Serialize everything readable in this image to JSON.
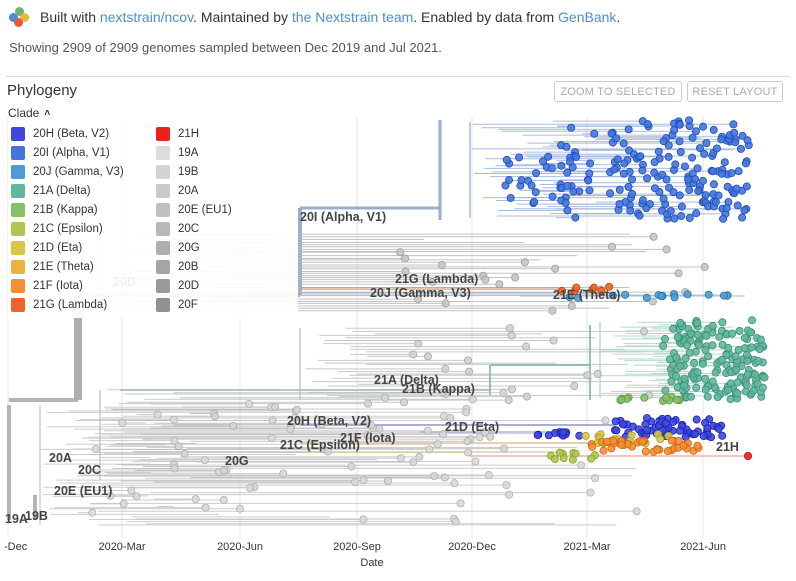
{
  "header": {
    "prefix": "Built with ",
    "link1": "nextstrain/ncov",
    "middle": ". Maintained by ",
    "link2": "the Nextstrain team",
    "middle2": ". Enabled by data from ",
    "link3": "GenBank",
    "suffix": "."
  },
  "summary": "Showing 2909 of 2909 genomes sampled between Dec 2019 and Jul 2021.",
  "panel": {
    "title": "Phylogeny",
    "zoom_button": "ZOOM TO SELECTED",
    "reset_button": "RESET LAYOUT"
  },
  "legend": {
    "title": "Clade",
    "columns": [
      [
        {
          "label": "20H (Beta, V2)",
          "color": "#3f47dc"
        },
        {
          "label": "20I (Alpha, V1)",
          "color": "#4475dd"
        },
        {
          "label": "20J (Gamma, V3)",
          "color": "#4e9bd6"
        },
        {
          "label": "21A (Delta)",
          "color": "#62b79d"
        },
        {
          "label": "21B (Kappa)",
          "color": "#85c16a"
        },
        {
          "label": "21C (Epsilon)",
          "color": "#adc74f"
        },
        {
          "label": "21D (Eta)",
          "color": "#d6c64a"
        },
        {
          "label": "21E (Theta)",
          "color": "#edb141"
        },
        {
          "label": "21F (Iota)",
          "color": "#f48f36"
        },
        {
          "label": "21G (Lambda)",
          "color": "#ee6428"
        }
      ],
      [
        {
          "label": "21H",
          "color": "#e8221d"
        },
        {
          "label": "19A",
          "color": "#dcdcdc"
        },
        {
          "label": "19B",
          "color": "#d3d3d3"
        },
        {
          "label": "20A",
          "color": "#cacaca"
        },
        {
          "label": "20E (EU1)",
          "color": "#c1c1c1"
        },
        {
          "label": "20C",
          "color": "#b8b8b8"
        },
        {
          "label": "20G",
          "color": "#afafaf"
        },
        {
          "label": "20B",
          "color": "#a5a5a5"
        },
        {
          "label": "20D",
          "color": "#9b9b9b"
        },
        {
          "label": "20F",
          "color": "#919191"
        }
      ]
    ]
  },
  "axis": {
    "title": "Date",
    "ticks": [
      "-Dec",
      "2020-Mar",
      "2020-Jun",
      "2020-Sep",
      "2020-Dec",
      "2021-Mar",
      "2021-Jun"
    ]
  },
  "clade_labels": [
    "20I (Alpha, V1)",
    "21G (Lambda)",
    "20J (Gamma, V3)",
    "21E (Theta)",
    "20D",
    "21A (Delta)",
    "21B (Kappa)",
    "20H (Beta, V2)",
    "21D (Eta)",
    "21F (Iota)",
    "21C (Epsilon)",
    "21H",
    "20A",
    "20G",
    "20C",
    "20E (EU1)",
    "19A",
    "19B"
  ],
  "colors": {
    "link": "#4b8fcf",
    "branch_grey": "#b8b8b8",
    "alpha": "#4475dd",
    "delta": "#62b79d",
    "beta": "#3f47dc",
    "iota": "#f48f36",
    "epsilon": "#adc74f",
    "eta": "#d6c64a",
    "red": "#e8221d"
  }
}
